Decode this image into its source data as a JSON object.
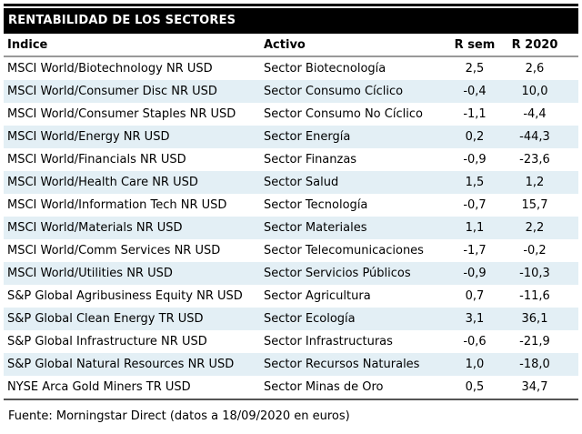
{
  "title": "RENTABILIDAD DE LOS SECTORES",
  "footer": "Fuente: Morningstar Direct (datos a 18/09/2020 en euros)",
  "colors": {
    "title_bar_bg": "#000000",
    "title_text": "#ffffff",
    "row_alt_bg": "#e3eff5",
    "header_rule": "#999999",
    "bottom_rule": "#555555",
    "text": "#000000"
  },
  "chart_data": {
    "type": "table",
    "title": "RENTABILIDAD DE LOS SECTORES",
    "columns": [
      "Índice",
      "Activo",
      "R sem",
      "R 2020"
    ],
    "rows": [
      [
        "MSCI World/Biotechnology NR USD",
        "Sector Biotecnología",
        "2,5",
        "2,6"
      ],
      [
        "MSCI World/Consumer Disc NR USD",
        "Sector Consumo Cíclico",
        "-0,4",
        "10,0"
      ],
      [
        "MSCI World/Consumer Staples NR USD",
        "Sector Consumo No Cíclico",
        "-1,1",
        "-4,4"
      ],
      [
        "MSCI World/Energy NR USD",
        "Sector Energía",
        "0,2",
        "-44,3"
      ],
      [
        "MSCI World/Financials NR USD",
        "Sector Finanzas",
        "-0,9",
        "-23,6"
      ],
      [
        "MSCI World/Health Care NR USD",
        "Sector Salud",
        "1,5",
        "1,2"
      ],
      [
        "MSCI World/Information Tech NR USD",
        "Sector Tecnología",
        "-0,7",
        "15,7"
      ],
      [
        "MSCI World/Materials NR USD",
        "Sector Materiales",
        "1,1",
        "2,2"
      ],
      [
        "MSCI World/Comm Services NR USD",
        "Sector Telecomunicaciones",
        "-1,7",
        "-0,2"
      ],
      [
        "MSCI World/Utilities NR USD",
        "Sector Servicios Públicos",
        "-0,9",
        "-10,3"
      ],
      [
        "S&P Global Agribusiness Equity NR USD",
        "Sector Agricultura",
        "0,7",
        "-11,6"
      ],
      [
        "S&P Global Clean Energy TR USD",
        "Sector Ecología",
        "3,1",
        "36,1"
      ],
      [
        "S&P Global Infrastructure NR USD",
        "Sector Infrastructuras",
        "-0,6",
        "-21,9"
      ],
      [
        "S&P Global Natural Resources NR USD",
        "Sector Recursos Naturales",
        "1,0",
        "-18,0"
      ],
      [
        "NYSE Arca Gold Miners TR USD",
        "Sector Minas de Oro",
        "0,5",
        "34,7"
      ]
    ],
    "source_note": "Fuente: Morningstar Direct (datos a 18/09/2020 en euros)"
  }
}
